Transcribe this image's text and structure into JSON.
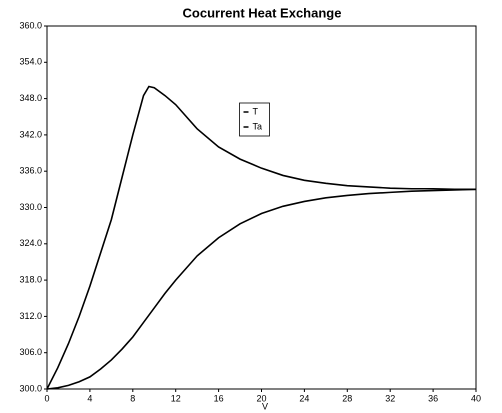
{
  "chart_data": {
    "type": "line",
    "title": "Cocurrent Heat Exchange",
    "xlabel": "V",
    "x": [
      0,
      1,
      2,
      3,
      4,
      5,
      6,
      7,
      8,
      9,
      9.5,
      10,
      11,
      12,
      14,
      16,
      18,
      20,
      22,
      24,
      26,
      28,
      30,
      32,
      34,
      36,
      38,
      40
    ],
    "series": [
      {
        "name": "T",
        "color": "#000000",
        "values": [
          300,
          303.5,
          307.5,
          312,
          317,
          322.5,
          328,
          335,
          342,
          348.5,
          350,
          349.8,
          348.5,
          347,
          343,
          340,
          338,
          336.5,
          335.3,
          334.5,
          334,
          333.6,
          333.4,
          333.2,
          333.1,
          333.1,
          333,
          333
        ]
      },
      {
        "name": "Ta",
        "color": "#000000",
        "values": [
          300,
          300.2,
          300.6,
          301.2,
          302,
          303.3,
          304.8,
          306.6,
          308.6,
          311,
          312.2,
          313.4,
          315.8,
          318,
          322,
          325,
          327.3,
          329,
          330.2,
          331,
          331.6,
          332,
          332.3,
          332.5,
          332.7,
          332.8,
          332.9,
          333
        ]
      }
    ],
    "xlim": [
      0,
      40
    ],
    "xticks": [
      0,
      4,
      8,
      12,
      16,
      20,
      24,
      28,
      32,
      36,
      40
    ],
    "ylim": [
      300,
      360
    ],
    "yticks": [
      {
        "value": 300,
        "label": "300.0"
      },
      {
        "value": 306,
        "label": "306.0"
      },
      {
        "value": 312,
        "label": "312.0"
      },
      {
        "value": 318,
        "label": "318.0"
      },
      {
        "value": 324,
        "label": "324.0"
      },
      {
        "value": 330,
        "label": "330.0"
      },
      {
        "value": 336,
        "label": "336.0"
      },
      {
        "value": 342,
        "label": "342.0"
      },
      {
        "value": 348,
        "label": "348.0"
      },
      {
        "value": 354,
        "label": "354.0"
      },
      {
        "value": 360,
        "label": "360.0"
      }
    ],
    "grid": false,
    "legend": "upper center"
  }
}
